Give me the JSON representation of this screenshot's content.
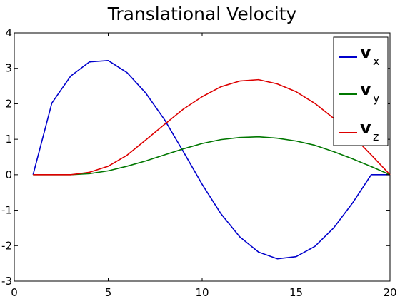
{
  "chart_data": {
    "type": "line",
    "title": "Translational Velocity",
    "xlabel": "",
    "ylabel": "",
    "xlim": [
      0,
      20
    ],
    "ylim": [
      -3,
      4
    ],
    "xticks": [
      0,
      5,
      10,
      15,
      20
    ],
    "yticks": [
      -3,
      -2,
      -1,
      0,
      1,
      2,
      3,
      4
    ],
    "x_tick_labels": [
      "0",
      "5",
      "10",
      "15",
      "20"
    ],
    "y_tick_labels": [
      "-3",
      "-2",
      "-1",
      "0",
      "1",
      "2",
      "3",
      "4"
    ],
    "grid": false,
    "legend_position": "top-right",
    "x": [
      1,
      2,
      3,
      4,
      5,
      6,
      7,
      8,
      9,
      10,
      11,
      12,
      13,
      14,
      15,
      16,
      17,
      18,
      19,
      20
    ],
    "series": [
      {
        "name": "v_x",
        "legend_main": "v",
        "legend_sub": "x",
        "color": "#0000cc",
        "values": [
          0.0,
          2.02,
          2.78,
          3.18,
          3.22,
          2.88,
          2.3,
          1.55,
          0.65,
          -0.27,
          -1.1,
          -1.75,
          -2.18,
          -2.37,
          -2.31,
          -2.02,
          -1.5,
          -0.8,
          0.0,
          0.0
        ]
      },
      {
        "name": "v_y",
        "legend_main": "v",
        "legend_sub": "y",
        "color": "#007700",
        "values": [
          0.0,
          0.0,
          0.0,
          0.03,
          0.11,
          0.24,
          0.39,
          0.56,
          0.73,
          0.88,
          0.99,
          1.05,
          1.07,
          1.03,
          0.95,
          0.83,
          0.65,
          0.45,
          0.23,
          0.0
        ]
      },
      {
        "name": "v_z",
        "legend_main": "v",
        "legend_sub": "z",
        "color": "#dd0000",
        "values": [
          0.0,
          0.0,
          0.0,
          0.07,
          0.24,
          0.55,
          0.98,
          1.42,
          1.85,
          2.2,
          2.48,
          2.64,
          2.68,
          2.56,
          2.34,
          2.01,
          1.59,
          1.1,
          0.56,
          0.0
        ]
      }
    ]
  }
}
